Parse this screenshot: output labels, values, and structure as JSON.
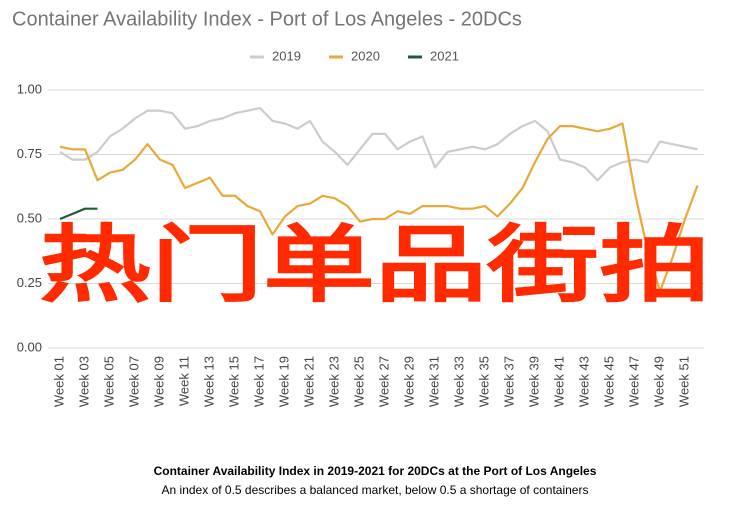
{
  "chart_data": {
    "type": "line",
    "title": "Container Availability Index - Port of Los Angeles - 20DCs",
    "categories": [
      "Week 01",
      null,
      "Week 03",
      null,
      "Week 05",
      null,
      "Week 07",
      null,
      "Week 09",
      null,
      "Week 11",
      null,
      "Week 13",
      null,
      "Week 15",
      null,
      "Week 17",
      null,
      "Week 19",
      null,
      "Week 21",
      null,
      "Week 23",
      null,
      "Week 25",
      null,
      "Week 27",
      null,
      "Week 29",
      null,
      "Week 31",
      null,
      "Week 33",
      null,
      "Week 35",
      null,
      "Week 37",
      null,
      "Week 39",
      null,
      "Week 41",
      null,
      "Week 43",
      null,
      "Week 45",
      null,
      "Week 47",
      null,
      "Week 49",
      null,
      "Week 51",
      null
    ],
    "series": [
      {
        "name": "2019",
        "color": "#cccccc",
        "values": [
          0.76,
          0.73,
          0.73,
          0.76,
          0.82,
          0.85,
          0.89,
          0.92,
          0.92,
          0.91,
          0.85,
          0.86,
          0.88,
          0.89,
          0.91,
          0.92,
          0.93,
          0.88,
          0.87,
          0.85,
          0.88,
          0.8,
          0.76,
          0.71,
          0.77,
          0.83,
          0.83,
          0.77,
          0.8,
          0.82,
          0.7,
          0.76,
          0.77,
          0.78,
          0.77,
          0.79,
          0.83,
          0.86,
          0.88,
          0.84,
          0.73,
          0.72,
          0.7,
          0.65,
          0.7,
          0.72,
          0.73,
          0.72,
          0.8,
          0.79,
          0.78,
          0.77
        ]
      },
      {
        "name": "2020",
        "color": "#e8a93a",
        "values": [
          0.78,
          0.77,
          0.77,
          0.65,
          0.68,
          0.69,
          0.73,
          0.79,
          0.73,
          0.71,
          0.62,
          0.64,
          0.66,
          0.59,
          0.59,
          0.55,
          0.53,
          0.44,
          0.51,
          0.55,
          0.56,
          0.59,
          0.58,
          0.55,
          0.49,
          0.5,
          0.5,
          0.53,
          0.52,
          0.55,
          0.55,
          0.55,
          0.54,
          0.54,
          0.55,
          0.51,
          0.56,
          0.62,
          0.72,
          0.81,
          0.86,
          0.86,
          0.85,
          0.84,
          0.85,
          0.87,
          0.6,
          0.38,
          0.22,
          0.35,
          0.5,
          0.63
        ]
      },
      {
        "name": "2021",
        "color": "#1e5c3a",
        "values": [
          0.5,
          0.52,
          0.54,
          0.54,
          null,
          null,
          null,
          null,
          null,
          null,
          null,
          null,
          null,
          null,
          null,
          null,
          null,
          null,
          null,
          null,
          null,
          null,
          null,
          null,
          null,
          null,
          null,
          null,
          null,
          null,
          null,
          null,
          null,
          null,
          null,
          null,
          null,
          null,
          null,
          null,
          null,
          null,
          null,
          null,
          null,
          null,
          null,
          null,
          null,
          null,
          null,
          null
        ]
      }
    ],
    "ylim": [
      0,
      1
    ],
    "yticks": [
      {
        "value": 0,
        "label": "0.00"
      },
      {
        "value": 0.25,
        "label": "0.25"
      },
      {
        "value": 0.5,
        "label": "0.50"
      },
      {
        "value": 0.75,
        "label": "0.75"
      },
      {
        "value": 1,
        "label": "1.00"
      }
    ],
    "grid": true,
    "legend": "top",
    "caption": "Container Availability Index in 2019-2021 for 20DCs at the Port of Los Angeles",
    "subcaption": "An index of 0.5 describes a balanced market, below 0.5 a shortage of containers",
    "overlay_text": "热门单品街拍"
  }
}
